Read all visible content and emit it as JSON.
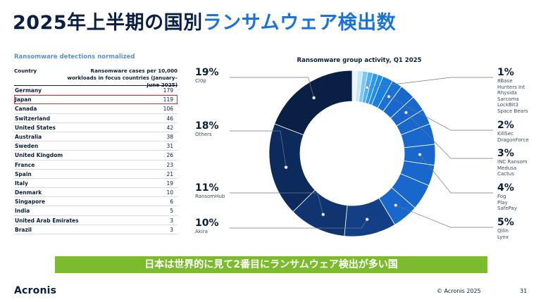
{
  "title_part1": "2025年上半期の国別",
  "title_part2": "ランサムウェア検出数",
  "table": {
    "subtitle": "Ransomware detections normalized",
    "col_country": "Country",
    "col_value": "Ransomware cases per 10,000 workloads in focus countries (January–June 2025)",
    "highlight_color": "#d9302c"
  },
  "chart_data": [
    {
      "type": "table",
      "columns": [
        "Country",
        "Ransomware cases per 10,000 workloads in focus countries (January–June 2025)"
      ],
      "rows": [
        [
          "Germany",
          179
        ],
        [
          "Japan",
          119
        ],
        [
          "Canada",
          106
        ],
        [
          "Switzerland",
          46
        ],
        [
          "United States",
          42
        ],
        [
          "Australia",
          38
        ],
        [
          "Sweden",
          31
        ],
        [
          "United Kingdom",
          26
        ],
        [
          "France",
          23
        ],
        [
          "Spain",
          21
        ],
        [
          "Italy",
          19
        ],
        [
          "Denmark",
          10
        ],
        [
          "Singapore",
          6
        ],
        [
          "India",
          5
        ],
        [
          "United Arab Emirates",
          3
        ],
        [
          "Brazil",
          3
        ]
      ],
      "highlighted_row": "Japan"
    },
    {
      "type": "pie",
      "title": "Ransomware group activity, Q1 2025",
      "groups": [
        {
          "pct": "19%",
          "value": 19,
          "names": [
            "Cl0p"
          ]
        },
        {
          "pct": "18%",
          "value": 18,
          "names": [
            "Others"
          ]
        },
        {
          "pct": "11%",
          "value": 11,
          "names": [
            "RansomHub"
          ]
        },
        {
          "pct": "10%",
          "value": 10,
          "names": [
            "Akira"
          ]
        },
        {
          "pct": "5%",
          "value": 5,
          "names": [
            "Qilin",
            "Lynx"
          ]
        },
        {
          "pct": "4%",
          "value": 4,
          "names": [
            "Fog",
            "Play",
            "SafePay"
          ]
        },
        {
          "pct": "3%",
          "value": 3,
          "names": [
            "INC Ransom",
            "Medusa",
            "Cactus"
          ]
        },
        {
          "pct": "2%",
          "value": 2,
          "names": [
            "KillSec",
            "DragonForce"
          ]
        },
        {
          "pct": "1%",
          "value": 1,
          "names": [
            "8Base",
            "Hunters Int",
            "Rhysida",
            "Sarcoma",
            "LockBit3",
            "Space Bears"
          ]
        }
      ],
      "palette": [
        "#0a1f44",
        "#0d2a5c",
        "#0f3470",
        "#123f86",
        "#134b9e",
        "#1557b4",
        "#1767cc",
        "#1a7de0",
        "#2a9af0",
        "#7fc7f7",
        "#c6e6fb",
        "#e7f4fd"
      ]
    }
  ],
  "banner": "日本は世界的に見て2番目にランサムウェア検出が多い国",
  "footer": {
    "logo": "Acronis",
    "copyright": "© Acronis 2025",
    "page": "31"
  }
}
